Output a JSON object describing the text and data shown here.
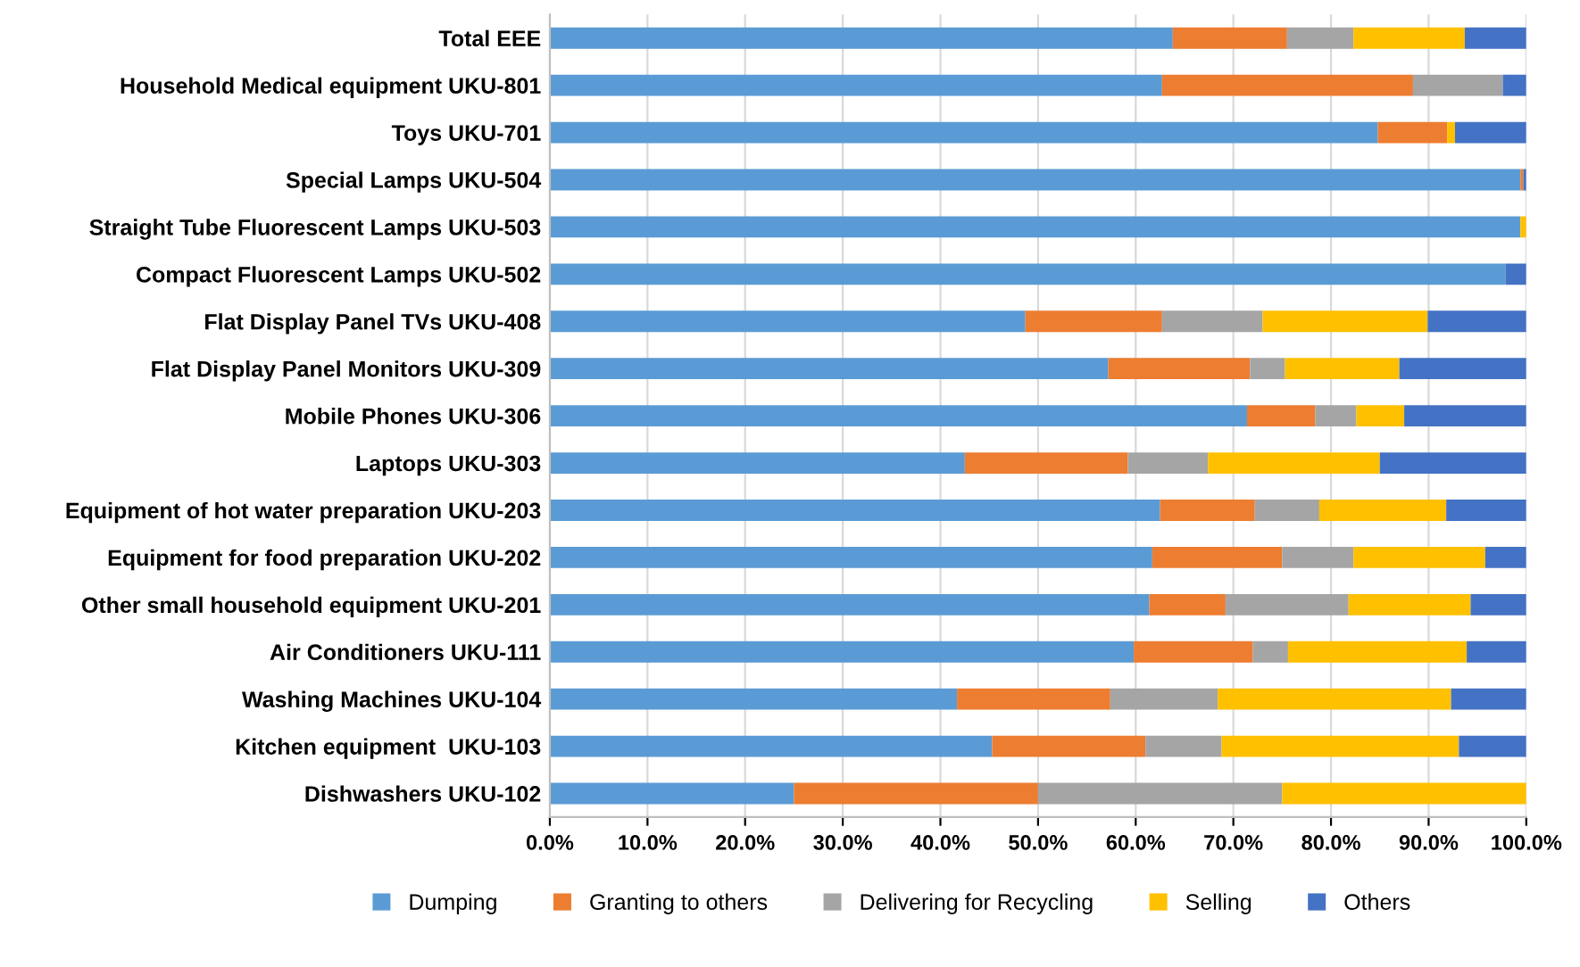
{
  "chart_data": {
    "type": "bar",
    "orientation": "horizontal",
    "stacked": true,
    "categories": [
      "Total EEE",
      "Household Medical equipment UKU-801",
      "Toys UKU-701",
      "Special Lamps UKU-504",
      "Straight Tube Fluorescent Lamps UKU-503",
      "Compact Fluorescent Lamps UKU-502",
      "Flat Display Panel TVs UKU-408",
      "Flat Display Panel Monitors UKU-309",
      "Mobile Phones UKU-306",
      "Laptops UKU-303",
      "Equipment of hot water preparation UKU-203",
      "Equipment for food preparation UKU-202",
      "Other small household equipment UKU-201",
      "Air Conditioners UKU-111",
      "Washing Machines UKU-104",
      "Kitchen equipment  UKU-103",
      "Dishwashers UKU-102"
    ],
    "series": [
      {
        "name": "Dumping",
        "color": "#5b9bd5",
        "values": [
          63.8,
          62.7,
          84.8,
          99.4,
          99.4,
          97.9,
          48.7,
          57.2,
          71.4,
          42.5,
          62.5,
          61.7,
          61.4,
          59.8,
          41.7,
          45.3,
          25
        ]
      },
      {
        "name": "Granting to others",
        "color": "#ed7d31",
        "values": [
          11.7,
          25.7,
          7.1,
          0.3,
          0,
          0,
          14.0,
          14.5,
          7.0,
          16.7,
          9.7,
          13.3,
          7.8,
          12.2,
          15.7,
          15.7,
          25
        ]
      },
      {
        "name": "Delivering for Recycling",
        "color": "#a5a5a5",
        "values": [
          6.8,
          9.2,
          0,
          0,
          null,
          0,
          10.3,
          3.6,
          4.2,
          8.2,
          6.6,
          7.3,
          12.6,
          3.6,
          11.0,
          7.8,
          25
        ]
      },
      {
        "name": "Selling",
        "color": "#ffc000",
        "values": [
          11.4,
          0,
          0.8,
          0,
          0.6,
          0,
          16.9,
          11.7,
          4.9,
          17.6,
          13.0,
          13.5,
          12.5,
          18.3,
          23.9,
          24.3,
          25
        ]
      },
      {
        "name": "Others",
        "color": "#4472c4",
        "values": [
          6.3,
          2.4,
          7.3,
          0.3,
          null,
          2.1,
          10.1,
          13.0,
          12.5,
          15.0,
          8.2,
          4.2,
          5.7,
          6.1,
          7.7,
          6.9,
          0
        ]
      }
    ],
    "xlim": [
      0,
      100
    ],
    "xticks": [
      {
        "value": 0,
        "label": "0.0%"
      },
      {
        "value": 10,
        "label": "10.0%"
      },
      {
        "value": 20,
        "label": "20.0%"
      },
      {
        "value": 30,
        "label": "30.0%"
      },
      {
        "value": 40,
        "label": "40.0%"
      },
      {
        "value": 50,
        "label": "50.0%"
      },
      {
        "value": 60,
        "label": "60.0%"
      },
      {
        "value": 70,
        "label": "70.0%"
      },
      {
        "value": 80,
        "label": "80.0%"
      },
      {
        "value": 90,
        "label": "90.0%"
      },
      {
        "value": 100,
        "label": "100.0%"
      }
    ],
    "grid": "x",
    "legend": "bottom"
  }
}
